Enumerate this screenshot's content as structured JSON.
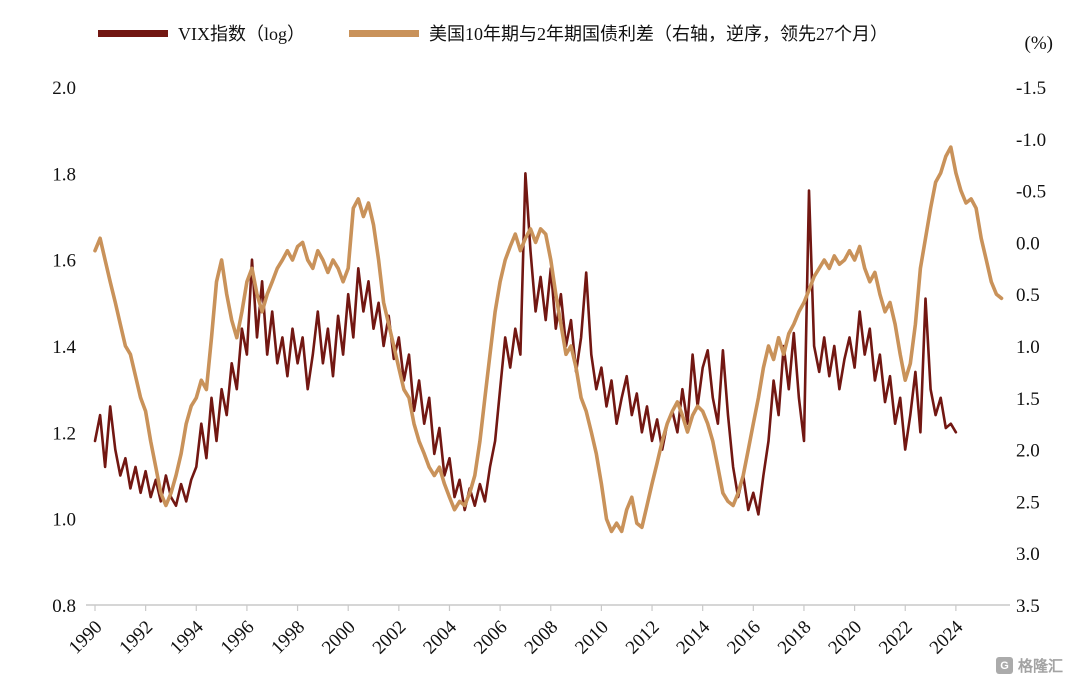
{
  "watermark": {
    "text": "格隆汇",
    "icon_letter": "G"
  },
  "chart_data": {
    "type": "line",
    "legend_position": "top",
    "x_axis": {
      "tick_years": [
        1990,
        1992,
        1994,
        1996,
        1998,
        2000,
        2002,
        2004,
        2006,
        2008,
        2010,
        2012,
        2014,
        2016,
        2018,
        2020,
        2022,
        2024
      ],
      "tick_labels": [
        "1990",
        "1992",
        "1994",
        "1996",
        "1998",
        "2000",
        "2002",
        "2004",
        "2006",
        "2008",
        "2010",
        "2012",
        "2014",
        "2016",
        "2018",
        "2020",
        "2022",
        "2024"
      ],
      "range": [
        1990,
        2026
      ]
    },
    "left_axis": {
      "tick_values": [
        2.0,
        1.8,
        1.6,
        1.4,
        1.2,
        1.0,
        0.8
      ],
      "tick_labels": [
        "2.0",
        "1.8",
        "1.6",
        "1.4",
        "1.2",
        "1.0",
        "0.8"
      ],
      "range": [
        0.8,
        2.0
      ]
    },
    "right_axis": {
      "tick_values": [
        -1.5,
        -1.0,
        -0.5,
        0.0,
        0.5,
        1.0,
        1.5,
        2.0,
        2.5,
        3.0,
        3.5
      ],
      "tick_labels": [
        "-1.5",
        "-1.0",
        "-0.5",
        "0.0",
        "0.5",
        "1.0",
        "1.5",
        "2.0",
        "2.5",
        "3.0",
        "3.5"
      ],
      "range": [
        -1.5,
        3.5
      ],
      "inverted": true,
      "unit_label": "(%)"
    },
    "series": [
      {
        "name": "VIX指数（log）",
        "axis": "left",
        "color": "#721712",
        "line_width": 2.6,
        "x_start": 1990.0,
        "x_step": 0.2,
        "values": [
          1.18,
          1.24,
          1.12,
          1.26,
          1.16,
          1.1,
          1.14,
          1.07,
          1.12,
          1.06,
          1.11,
          1.05,
          1.09,
          1.04,
          1.1,
          1.05,
          1.03,
          1.08,
          1.04,
          1.09,
          1.12,
          1.22,
          1.14,
          1.28,
          1.18,
          1.3,
          1.24,
          1.36,
          1.3,
          1.44,
          1.38,
          1.6,
          1.42,
          1.55,
          1.38,
          1.48,
          1.36,
          1.42,
          1.33,
          1.44,
          1.36,
          1.42,
          1.3,
          1.38,
          1.48,
          1.36,
          1.44,
          1.33,
          1.47,
          1.38,
          1.52,
          1.42,
          1.58,
          1.48,
          1.55,
          1.44,
          1.5,
          1.4,
          1.47,
          1.37,
          1.42,
          1.32,
          1.38,
          1.25,
          1.32,
          1.22,
          1.28,
          1.15,
          1.21,
          1.1,
          1.14,
          1.05,
          1.09,
          1.02,
          1.07,
          1.03,
          1.08,
          1.04,
          1.12,
          1.18,
          1.3,
          1.42,
          1.35,
          1.44,
          1.38,
          1.8,
          1.62,
          1.48,
          1.56,
          1.46,
          1.58,
          1.44,
          1.52,
          1.4,
          1.46,
          1.34,
          1.42,
          1.57,
          1.38,
          1.3,
          1.35,
          1.26,
          1.32,
          1.22,
          1.28,
          1.33,
          1.24,
          1.29,
          1.2,
          1.26,
          1.18,
          1.23,
          1.16,
          1.22,
          1.25,
          1.2,
          1.3,
          1.22,
          1.38,
          1.26,
          1.35,
          1.39,
          1.28,
          1.22,
          1.39,
          1.24,
          1.12,
          1.05,
          1.1,
          1.02,
          1.06,
          1.01,
          1.1,
          1.18,
          1.32,
          1.24,
          1.4,
          1.3,
          1.43,
          1.28,
          1.18,
          1.76,
          1.4,
          1.34,
          1.42,
          1.33,
          1.4,
          1.3,
          1.37,
          1.42,
          1.35,
          1.48,
          1.38,
          1.44,
          1.32,
          1.38,
          1.27,
          1.33,
          1.22,
          1.28,
          1.16,
          1.24,
          1.34,
          1.2,
          1.51,
          1.3,
          1.24,
          1.28,
          1.21,
          1.22,
          1.2
        ]
      },
      {
        "name": "美国10年期与2年期国债利差（右轴，逆序，领先27个月）",
        "axis": "right",
        "color": "#C9925A",
        "line_width": 3.6,
        "x_start": 1990.0,
        "x_step": 0.2,
        "values": [
          0.08,
          -0.04,
          0.17,
          0.38,
          0.58,
          0.79,
          1.0,
          1.08,
          1.29,
          1.5,
          1.63,
          1.92,
          2.17,
          2.42,
          2.54,
          2.42,
          2.25,
          2.04,
          1.75,
          1.58,
          1.5,
          1.33,
          1.42,
          0.92,
          0.38,
          0.17,
          0.5,
          0.75,
          0.92,
          0.67,
          0.38,
          0.25,
          0.5,
          0.67,
          0.5,
          0.38,
          0.25,
          0.17,
          0.08,
          0.17,
          0.04,
          0.0,
          0.17,
          0.25,
          0.08,
          0.17,
          0.29,
          0.17,
          0.25,
          0.38,
          0.25,
          -0.33,
          -0.42,
          -0.25,
          -0.38,
          -0.17,
          0.17,
          0.58,
          0.79,
          1.0,
          1.21,
          1.42,
          1.5,
          1.75,
          1.92,
          2.04,
          2.17,
          2.25,
          2.17,
          2.33,
          2.46,
          2.58,
          2.5,
          2.54,
          2.42,
          2.25,
          1.92,
          1.5,
          1.08,
          0.67,
          0.38,
          0.17,
          0.04,
          -0.08,
          0.08,
          -0.04,
          -0.13,
          0.0,
          -0.13,
          -0.08,
          0.17,
          0.5,
          0.79,
          1.08,
          1.0,
          1.21,
          1.5,
          1.63,
          1.83,
          2.04,
          2.33,
          2.67,
          2.79,
          2.71,
          2.79,
          2.58,
          2.46,
          2.71,
          2.75,
          2.54,
          2.33,
          2.13,
          1.92,
          1.75,
          1.63,
          1.54,
          1.67,
          1.83,
          1.67,
          1.58,
          1.63,
          1.75,
          1.92,
          2.17,
          2.42,
          2.5,
          2.54,
          2.42,
          2.25,
          2.0,
          1.75,
          1.5,
          1.21,
          1.0,
          1.13,
          0.92,
          1.08,
          0.88,
          0.79,
          0.67,
          0.58,
          0.46,
          0.33,
          0.25,
          0.17,
          0.25,
          0.13,
          0.21,
          0.17,
          0.08,
          0.17,
          0.04,
          0.25,
          0.38,
          0.29,
          0.5,
          0.67,
          0.58,
          0.79,
          1.08,
          1.33,
          1.17,
          0.79,
          0.25,
          -0.04,
          -0.33,
          -0.58,
          -0.67,
          -0.83,
          -0.92,
          -0.67,
          -0.5,
          -0.38,
          -0.42,
          -0.33,
          -0.04,
          0.17,
          0.38,
          0.5,
          0.54
        ]
      }
    ]
  }
}
